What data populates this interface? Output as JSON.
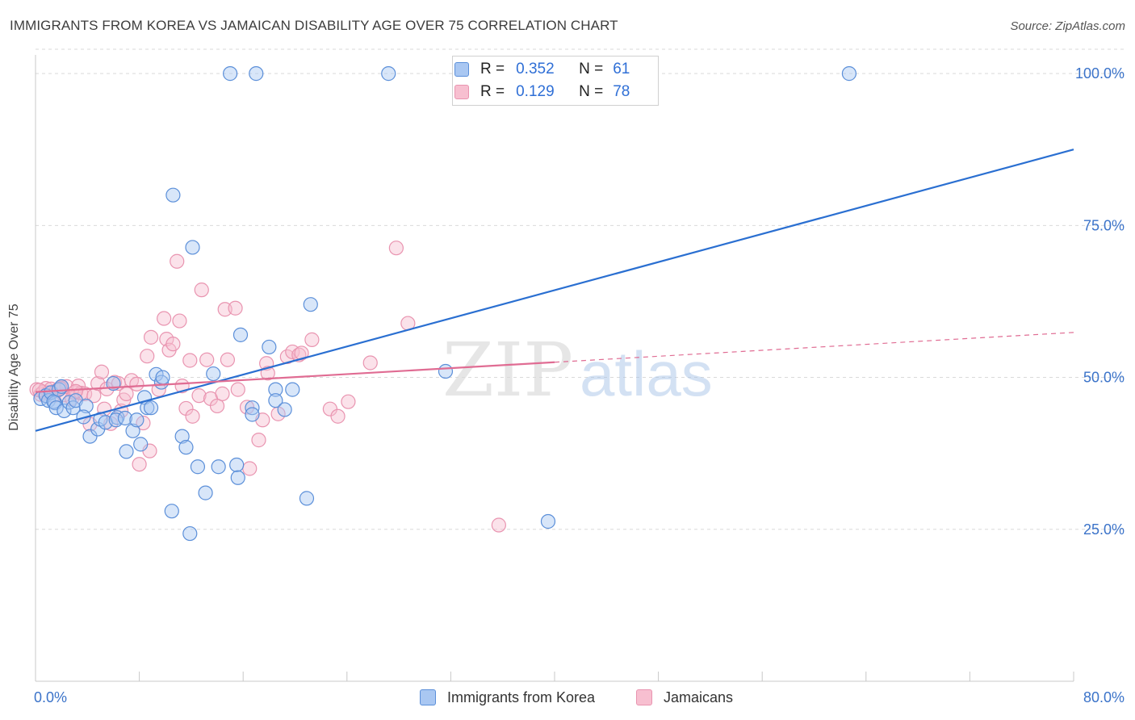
{
  "title": "IMMIGRANTS FROM KOREA VS JAMAICAN DISABILITY AGE OVER 75 CORRELATION CHART",
  "source": "Source: ZipAtlas.com",
  "watermark": {
    "zip": "ZIP",
    "atlas": "atlas"
  },
  "colors": {
    "korea_fill": "#a9c7f2",
    "korea_stroke": "#5b8fd9",
    "korea_line": "#2a6fd1",
    "jam_fill": "#f7bfd0",
    "jam_stroke": "#e994b0",
    "jam_line": "#e06c93",
    "grid": "#d9d9d9",
    "tick_label": "#3b73c9"
  },
  "legend": {
    "rows": [
      {
        "r_label": "R =",
        "r_value": "0.352",
        "n_label": "N =",
        "n_value": "61"
      },
      {
        "r_label": "R =",
        "r_value": "0.129",
        "n_label": "N =",
        "n_value": "78"
      }
    ]
  },
  "bottom_legend": {
    "korea": "Immigrants from Korea",
    "jamaica": "Jamaicans"
  },
  "chart_data": {
    "type": "scatter",
    "title": "IMMIGRANTS FROM KOREA VS JAMAICAN DISABILITY AGE OVER 75 CORRELATION CHART",
    "xlabel": "",
    "ylabel": "Disability Age Over 75",
    "xlim": [
      0,
      80
    ],
    "ylim": [
      0,
      104
    ],
    "x_tick_labels": [
      "0.0%",
      "80.0%"
    ],
    "y_ticks": [
      25,
      50,
      75,
      100
    ],
    "y_tick_labels": [
      "25.0%",
      "50.0%",
      "75.0%",
      "100.0%"
    ],
    "grid": true,
    "series": [
      {
        "name": "Immigrants from Korea",
        "R": 0.352,
        "N": 61,
        "trend": {
          "x": [
            0,
            80
          ],
          "y": [
            41.2,
            87.5
          ],
          "style": "solid"
        },
        "points": [
          [
            0.4,
            46.5
          ],
          [
            0.8,
            47.0
          ],
          [
            1.0,
            46.2
          ],
          [
            1.2,
            47.5
          ],
          [
            1.5,
            45.8
          ],
          [
            1.4,
            46.0
          ],
          [
            1.6,
            45.0
          ],
          [
            1.8,
            48.0
          ],
          [
            2.0,
            48.5
          ],
          [
            2.2,
            44.5
          ],
          [
            2.6,
            45.9
          ],
          [
            2.9,
            45.0
          ],
          [
            3.1,
            46.2
          ],
          [
            3.9,
            45.3
          ],
          [
            3.7,
            43.5
          ],
          [
            4.2,
            40.3
          ],
          [
            4.8,
            41.5
          ],
          [
            5.0,
            43.1
          ],
          [
            5.4,
            42.6
          ],
          [
            6.0,
            49.0
          ],
          [
            6.3,
            43.4
          ],
          [
            6.2,
            43.0
          ],
          [
            6.9,
            43.3
          ],
          [
            7.0,
            37.8
          ],
          [
            7.5,
            41.2
          ],
          [
            7.8,
            43.0
          ],
          [
            8.1,
            39.0
          ],
          [
            8.4,
            46.7
          ],
          [
            8.6,
            45.0
          ],
          [
            8.9,
            45.0
          ],
          [
            9.3,
            50.5
          ],
          [
            9.7,
            49.2
          ],
          [
            9.8,
            50.0
          ],
          [
            10.5,
            28.0
          ],
          [
            10.6,
            80.0
          ],
          [
            11.3,
            40.3
          ],
          [
            11.6,
            38.5
          ],
          [
            11.9,
            24.3
          ],
          [
            12.1,
            71.4
          ],
          [
            12.5,
            35.3
          ],
          [
            13.1,
            31.0
          ],
          [
            13.7,
            50.6
          ],
          [
            14.1,
            35.3
          ],
          [
            15.0,
            100.0
          ],
          [
            15.5,
            35.6
          ],
          [
            15.6,
            33.5
          ],
          [
            15.8,
            57.0
          ],
          [
            16.7,
            45.0
          ],
          [
            16.7,
            43.9
          ],
          [
            17.0,
            100.0
          ],
          [
            18.0,
            55.0
          ],
          [
            18.5,
            48.0
          ],
          [
            18.5,
            46.2
          ],
          [
            19.2,
            44.7
          ],
          [
            19.8,
            48.0
          ],
          [
            20.9,
            30.1
          ],
          [
            21.2,
            62.0
          ],
          [
            27.2,
            100.0
          ],
          [
            31.6,
            51.0
          ],
          [
            39.5,
            26.3
          ],
          [
            62.7,
            100.0
          ]
        ]
      },
      {
        "name": "Jamaicans",
        "R": 0.129,
        "N": 78,
        "trend": {
          "x": [
            0,
            40,
            80
          ],
          "y": [
            47.6,
            52.5,
            57.4
          ],
          "style": "solid-then-dashed"
        },
        "points": [
          [
            0.1,
            48.0
          ],
          [
            0.4,
            47.2
          ],
          [
            0.6,
            47.6
          ],
          [
            0.8,
            48.2
          ],
          [
            1.0,
            47.5
          ],
          [
            1.2,
            48.1
          ],
          [
            1.4,
            47.0
          ],
          [
            1.6,
            47.8
          ],
          [
            2.0,
            48.3
          ],
          [
            2.2,
            47.1
          ],
          [
            2.4,
            48.5
          ],
          [
            2.8,
            46.5
          ],
          [
            3.0,
            47.5
          ],
          [
            3.3,
            48.6
          ],
          [
            3.5,
            47.4
          ],
          [
            3.8,
            47.3
          ],
          [
            4.2,
            42.3
          ],
          [
            4.5,
            47.0
          ],
          [
            4.8,
            49.0
          ],
          [
            5.1,
            50.9
          ],
          [
            5.3,
            44.8
          ],
          [
            5.5,
            48.1
          ],
          [
            5.8,
            42.4
          ],
          [
            6.1,
            49.2
          ],
          [
            6.4,
            49.0
          ],
          [
            6.6,
            44.5
          ],
          [
            6.8,
            46.3
          ],
          [
            7.0,
            47.3
          ],
          [
            7.4,
            49.5
          ],
          [
            7.8,
            48.9
          ],
          [
            8.0,
            35.7
          ],
          [
            8.3,
            42.5
          ],
          [
            8.8,
            37.9
          ],
          [
            8.6,
            53.5
          ],
          [
            8.9,
            56.6
          ],
          [
            9.5,
            48.0
          ],
          [
            9.9,
            59.7
          ],
          [
            10.1,
            56.3
          ],
          [
            10.3,
            54.5
          ],
          [
            10.6,
            55.5
          ],
          [
            10.9,
            69.1
          ],
          [
            11.1,
            59.3
          ],
          [
            11.3,
            48.6
          ],
          [
            11.6,
            44.9
          ],
          [
            11.9,
            52.8
          ],
          [
            12.1,
            43.6
          ],
          [
            12.6,
            47.0
          ],
          [
            12.8,
            64.4
          ],
          [
            13.2,
            52.9
          ],
          [
            13.5,
            46.5
          ],
          [
            14.0,
            45.3
          ],
          [
            14.4,
            47.3
          ],
          [
            14.6,
            61.2
          ],
          [
            14.8,
            52.9
          ],
          [
            15.4,
            61.4
          ],
          [
            15.6,
            48.0
          ],
          [
            16.3,
            45.1
          ],
          [
            16.5,
            35.0
          ],
          [
            17.2,
            39.7
          ],
          [
            17.5,
            43.0
          ],
          [
            17.8,
            52.3
          ],
          [
            17.9,
            50.7
          ],
          [
            18.7,
            44.0
          ],
          [
            19.4,
            53.4
          ],
          [
            19.8,
            54.2
          ],
          [
            20.3,
            53.7
          ],
          [
            20.5,
            54.0
          ],
          [
            21.3,
            56.2
          ],
          [
            22.7,
            44.8
          ],
          [
            23.3,
            43.6
          ],
          [
            24.1,
            46.0
          ],
          [
            25.8,
            52.4
          ],
          [
            27.8,
            71.3
          ],
          [
            28.7,
            58.9
          ],
          [
            35.7,
            25.7
          ],
          [
            0.3,
            47.9
          ],
          [
            1.9,
            48.2
          ],
          [
            3.1,
            47.7
          ]
        ]
      }
    ]
  }
}
